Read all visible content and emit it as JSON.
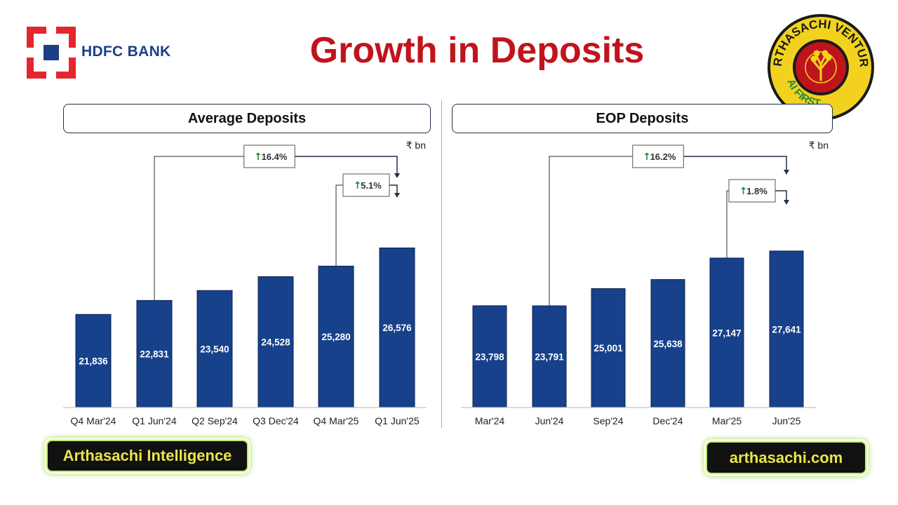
{
  "brand": {
    "name": "HDFC BANK"
  },
  "page": {
    "title": "Growth in Deposits"
  },
  "seal": {
    "text_top": "ARTHASACHI VENTURE",
    "text_bottom": "AI FIRST"
  },
  "colors": {
    "bar": "#17418b",
    "title": "#c0141c",
    "growth_arrow": "#1f8a3a",
    "connector": "#22304a"
  },
  "chart_data": [
    {
      "type": "bar",
      "title": "Average Deposits",
      "unit": "₹ bn",
      "categories": [
        "Q4 Mar'24",
        "Q1 Jun'24",
        "Q2 Sep'24",
        "Q3 Dec'24",
        "Q4 Mar'25",
        "Q1 Jun'25"
      ],
      "values": [
        21836,
        22831,
        23540,
        24528,
        25280,
        26576
      ],
      "value_labels": [
        "21,836",
        "22,831",
        "23,540",
        "24,528",
        "25,280",
        "26,576"
      ],
      "annotations": [
        {
          "text": "16.4%",
          "from": "Q1 Jun'24",
          "to": "Q1 Jun'25"
        },
        {
          "text": "5.1%",
          "from": "Q4 Mar'25",
          "to": "Q1 Jun'25"
        }
      ]
    },
    {
      "type": "bar",
      "title": "EOP Deposits",
      "unit": "₹ bn",
      "categories": [
        "Mar'24",
        "Jun'24",
        "Sep'24",
        "Dec'24",
        "Mar'25",
        "Jun'25"
      ],
      "values": [
        23798,
        23791,
        25001,
        25638,
        27147,
        27641
      ],
      "value_labels": [
        "23,798",
        "23,791",
        "25,001",
        "25,638",
        "27,147",
        "27,641"
      ],
      "annotations": [
        {
          "text": "16.2%",
          "from": "Jun'24",
          "to": "Jun'25"
        },
        {
          "text": "1.8%",
          "from": "Mar'25",
          "to": "Jun'25"
        }
      ]
    }
  ],
  "footer": {
    "left_label": "Arthasachi Intelligence",
    "right_label": "arthasachi.com"
  }
}
